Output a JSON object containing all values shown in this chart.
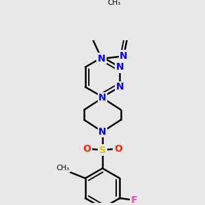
{
  "bg_color": "#e8e8e8",
  "bond_color": "#000000",
  "bond_width": 1.8,
  "atom_colors": {
    "N": "#0000ff",
    "S": "#cccc00",
    "O": "#ff2200",
    "F": "#ff44cc",
    "C": "#000000"
  },
  "font_size": 10,
  "bg_hex": [
    232,
    232,
    232
  ]
}
